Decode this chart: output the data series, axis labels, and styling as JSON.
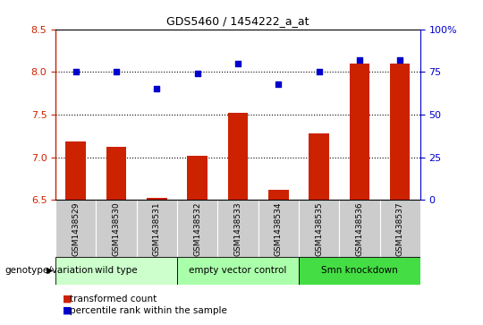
{
  "title": "GDS5460 / 1454222_a_at",
  "samples": [
    "GSM1438529",
    "GSM1438530",
    "GSM1438531",
    "GSM1438532",
    "GSM1438533",
    "GSM1438534",
    "GSM1438535",
    "GSM1438536",
    "GSM1438537"
  ],
  "bar_values": [
    7.18,
    7.12,
    6.52,
    7.02,
    7.52,
    6.62,
    7.28,
    8.1,
    8.1
  ],
  "scatter_values": [
    75,
    75,
    65,
    74,
    80,
    68,
    75,
    82,
    82
  ],
  "ylim_left": [
    6.5,
    8.5
  ],
  "ylim_right": [
    0,
    100
  ],
  "yticks_left": [
    6.5,
    7.0,
    7.5,
    8.0,
    8.5
  ],
  "yticks_right": [
    0,
    25,
    50,
    75,
    100
  ],
  "ytick_labels_right": [
    "0",
    "25",
    "50",
    "75",
    "100%"
  ],
  "bar_color": "#CC2200",
  "scatter_color": "#0000CC",
  "bar_bottom": 6.5,
  "groups": [
    {
      "label": "wild type",
      "start": 0,
      "end": 3,
      "color": "#CCFFCC"
    },
    {
      "label": "empty vector control",
      "start": 3,
      "end": 6,
      "color": "#AAFFAA"
    },
    {
      "label": "Smn knockdown",
      "start": 6,
      "end": 9,
      "color": "#44DD44"
    }
  ],
  "genotype_label": "genotype/variation",
  "legend_bar_label": "transformed count",
  "legend_scatter_label": "percentile rank within the sample",
  "tick_area_color": "#CCCCCC",
  "plot_bg_color": "#FFFFFF"
}
